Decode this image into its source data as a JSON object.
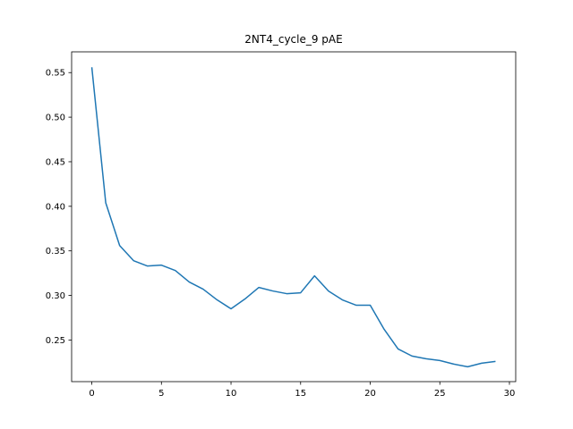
{
  "chart_data": {
    "type": "line",
    "title": "2NT4_cycle_9 pAE",
    "xlabel": "",
    "ylabel": "",
    "xlim": [
      -1.45,
      30.45
    ],
    "ylim": [
      0.2033,
      0.5733
    ],
    "x_ticks": [
      0,
      5,
      10,
      15,
      20,
      25,
      30
    ],
    "y_ticks": [
      0.25,
      0.3,
      0.35,
      0.4,
      0.45,
      0.5,
      0.55
    ],
    "x_tick_labels": [
      "0",
      "5",
      "10",
      "15",
      "20",
      "25",
      "30"
    ],
    "y_tick_labels": [
      "0.25",
      "0.30",
      "0.35",
      "0.40",
      "0.45",
      "0.50",
      "0.55"
    ],
    "grid": false,
    "series": [
      {
        "color": "#1f77b4",
        "x": [
          0,
          1,
          2,
          3,
          4,
          5,
          6,
          7,
          8,
          9,
          10,
          11,
          12,
          13,
          14,
          15,
          16,
          17,
          18,
          19,
          20,
          21,
          22,
          23,
          24,
          25,
          26,
          27,
          28,
          29
        ],
        "y": [
          0.556,
          0.404,
          0.356,
          0.339,
          0.333,
          0.334,
          0.328,
          0.315,
          0.307,
          0.295,
          0.285,
          0.296,
          0.309,
          0.305,
          0.302,
          0.303,
          0.322,
          0.305,
          0.295,
          0.289,
          0.289,
          0.262,
          0.24,
          0.232,
          0.229,
          0.227,
          0.223,
          0.22,
          0.224,
          0.226
        ]
      }
    ]
  }
}
